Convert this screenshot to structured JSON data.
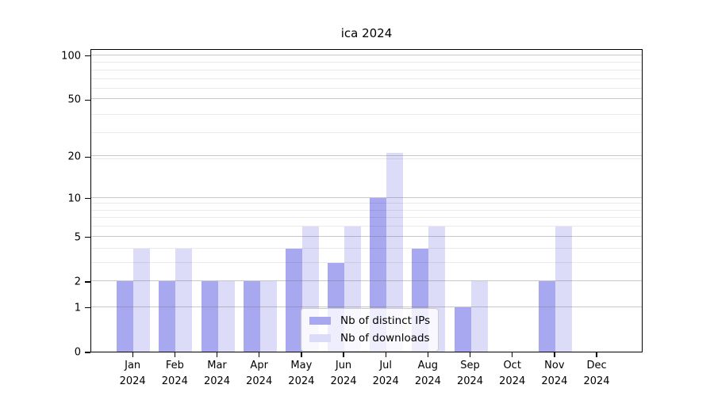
{
  "title": "ica 2024",
  "legend": {
    "items": [
      {
        "label": "Nb of distinct IPs",
        "color": "#a8a8f0"
      },
      {
        "label": "Nb of downloads",
        "color": "#dcdcf8"
      }
    ]
  },
  "chart_data": {
    "type": "bar",
    "title": "ica 2024",
    "categories": [
      "Jan 2024",
      "Feb 2024",
      "Mar 2024",
      "Apr 2024",
      "May 2024",
      "Jun 2024",
      "Jul 2024",
      "Aug 2024",
      "Sep 2024",
      "Oct 2024",
      "Nov 2024",
      "Dec 2024"
    ],
    "series": [
      {
        "name": "Nb of distinct IPs",
        "color": "#a8a8f0",
        "values": [
          2,
          2,
          2,
          2,
          4,
          3,
          10,
          4,
          1,
          0,
          2,
          0
        ]
      },
      {
        "name": "Nb of downloads",
        "color": "#dcdcf8",
        "values": [
          4,
          4,
          2,
          2,
          6,
          6,
          21,
          6,
          2,
          0,
          6,
          0
        ]
      }
    ],
    "xlabel": "",
    "ylabel": "",
    "yscale": "log1p",
    "yticks": [
      0,
      1,
      2,
      5,
      10,
      20,
      50,
      100
    ],
    "ylim": [
      0,
      112
    ],
    "grid": "on",
    "grid_over_bars": true,
    "legend_position": "lower center",
    "colors": {
      "major_grid": "#c4c4c4",
      "minor_grid": "#ebebeb",
      "spine": "#000000",
      "text": "#000000",
      "background": "#ffffff"
    }
  }
}
